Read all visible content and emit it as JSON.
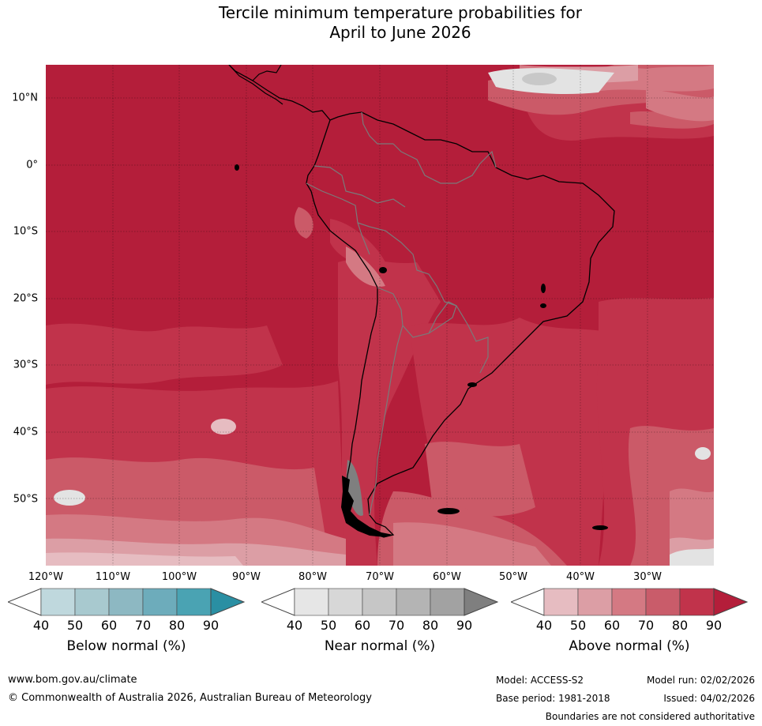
{
  "title_line1": "Tercile minimum temperature probabilities for",
  "title_line2": "April to June 2026",
  "map": {
    "lat_labels": [
      "10°N",
      "0°",
      "10°S",
      "20°S",
      "30°S",
      "40°S",
      "50°S"
    ],
    "lon_labels": [
      "120°W",
      "110°W",
      "100°W",
      "90°W",
      "80°W",
      "70°W",
      "60°W",
      "50°W",
      "40°W",
      "30°W"
    ],
    "colors": {
      "above_90": "#b41e3a",
      "above_80": "#c1334b",
      "above_70": "#cb5a68",
      "above_60": "#d47983",
      "above_50": "#dc9ea5",
      "above_40": "#e6bcc1",
      "near_90": "#7f7f7f",
      "near_70": "#c8c8c8",
      "near_50": "#e3e3e3"
    }
  },
  "legend": {
    "below": {
      "title": "Below normal (%)",
      "ticks": [
        "40",
        "50",
        "60",
        "70",
        "80",
        "90"
      ],
      "colors": [
        "#bfd8dd",
        "#a8c9cf",
        "#8db8c2",
        "#6dacbb",
        "#4aa3b3",
        "#2a8fa3"
      ]
    },
    "near": {
      "title": "Near normal (%)",
      "ticks": [
        "40",
        "50",
        "60",
        "70",
        "80",
        "90"
      ],
      "colors": [
        "#e6e6e6",
        "#d7d7d7",
        "#c6c6c6",
        "#b4b4b4",
        "#a2a2a2",
        "#7f7f7f"
      ]
    },
    "above": {
      "title": "Above normal (%)",
      "ticks": [
        "40",
        "50",
        "60",
        "70",
        "80",
        "90"
      ],
      "colors": [
        "#e6bcc1",
        "#dc9ea5",
        "#d47983",
        "#c95c6a",
        "#c1334b",
        "#b41e3a"
      ]
    }
  },
  "footer": {
    "url": "www.bom.gov.au/climate",
    "copyright": "© Commonwealth of Australia 2026, Australian Bureau of Meteorology",
    "model": "Model: ACCESS-S2",
    "model_run": "Model run: 02/02/2026",
    "base_period": "Base period: 1981-2018",
    "issued": "Issued: 04/02/2026",
    "disclaimer": "Boundaries are not considered authoritative"
  }
}
